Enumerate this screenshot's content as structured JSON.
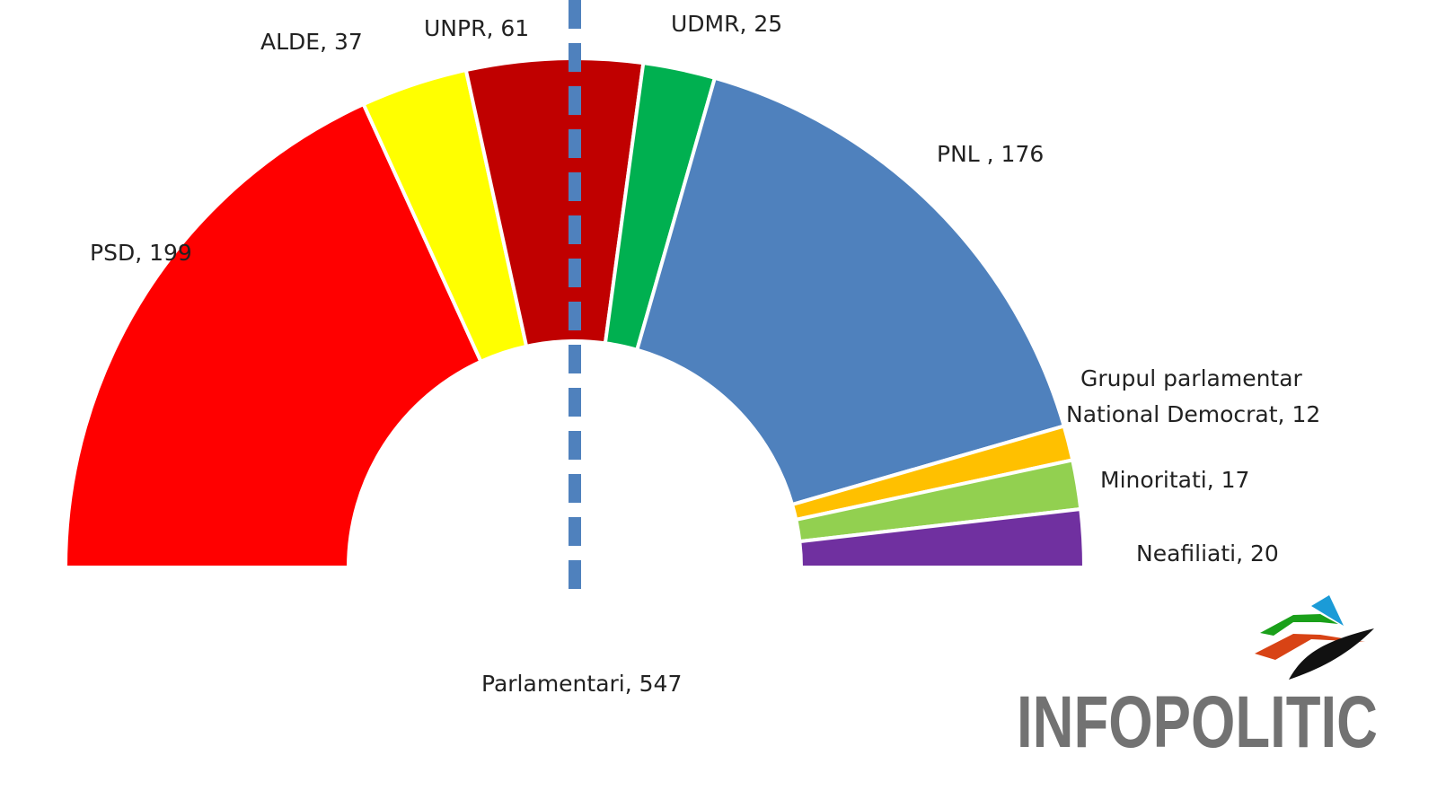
{
  "chart_data": {
    "type": "pie",
    "subtype": "half-donut",
    "slices": [
      {
        "label": "PSD",
        "value": 199,
        "color": "#ff0000"
      },
      {
        "label": "ALDE",
        "value": 37,
        "color": "#ffff00"
      },
      {
        "label": "UNPR",
        "value": 61,
        "color": "#c00000"
      },
      {
        "label": "UDMR",
        "value": 25,
        "color": "#00b050"
      },
      {
        "label": "PNL ",
        "value": 176,
        "color": "#4f81bd"
      },
      {
        "label": "Grupul parlamentar National Democrat",
        "value": 12,
        "color": "#ffc000"
      },
      {
        "label": "Minoritati",
        "value": 17,
        "color": "#92d050"
      },
      {
        "label": "Neafiliati",
        "value": 20,
        "color": "#7030a0"
      }
    ],
    "total_label": "Parlamentari, 547",
    "total": 547,
    "majority_line": {
      "style": "dashed",
      "color": "#4f81bd",
      "position": "half"
    },
    "legend": "none"
  },
  "logo": {
    "text": "INFOPOLITIC",
    "colors": [
      "#1aa01a",
      "#1b9bd7",
      "#d84315",
      "#111111"
    ]
  }
}
